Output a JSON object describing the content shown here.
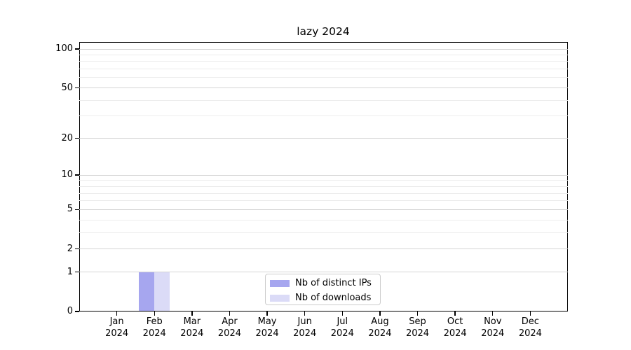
{
  "chart_data": {
    "type": "bar",
    "title": "lazy 2024",
    "x_year_label": "2024",
    "categories": [
      "Jan",
      "Feb",
      "Mar",
      "Apr",
      "May",
      "Jun",
      "Jul",
      "Aug",
      "Sep",
      "Oct",
      "Nov",
      "Dec"
    ],
    "series": [
      {
        "name": "Nb of distinct IPs",
        "color": "#a6a6ef",
        "values": [
          0,
          1,
          0,
          0,
          0,
          0,
          0,
          0,
          0,
          0,
          0,
          0
        ]
      },
      {
        "name": "Nb of downloads",
        "color": "#dbdbf7",
        "values": [
          0,
          1,
          0,
          0,
          0,
          0,
          0,
          0,
          0,
          0,
          0,
          0
        ]
      }
    ],
    "y_scale": "log1p",
    "y_major_ticks": [
      0,
      1,
      2,
      5,
      10,
      20,
      50,
      100
    ],
    "y_minor_ticks": [
      3,
      4,
      6,
      7,
      8,
      9,
      30,
      40,
      60,
      70,
      80,
      90
    ],
    "ylim": [
      0,
      113
    ],
    "grid": true,
    "legend_position": "lower center",
    "colors": {
      "major_grid": "#d4d4d4",
      "minor_grid": "#ececec",
      "axis": "#000000",
      "background": "#ffffff"
    }
  }
}
